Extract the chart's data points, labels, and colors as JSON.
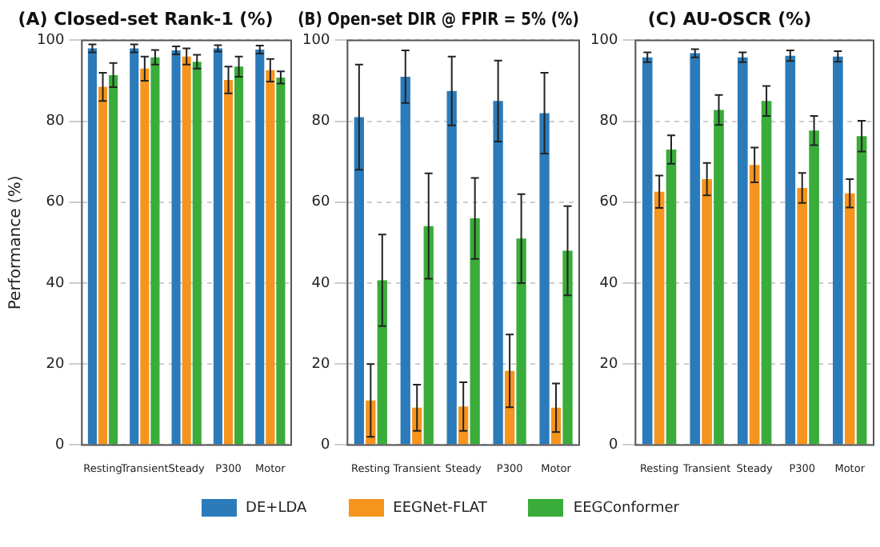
{
  "chart_data": [
    {
      "type": "bar",
      "title": "(A) Closed-set Rank-1 (%)",
      "ylabel": "Performance (%)",
      "categories": [
        "Resting",
        "Transient",
        "Steady",
        "P300",
        "Motor"
      ],
      "ylim": [
        0,
        100
      ],
      "yticks": [
        0,
        20,
        40,
        60,
        80,
        100
      ],
      "grid": "y",
      "legend": "bottom",
      "series": [
        {
          "name": "DE+LDA",
          "color": "#2b7bba",
          "values": [
            98,
            98,
            97.5,
            98,
            97.7
          ],
          "errors": [
            1,
            1,
            1,
            0.8,
            1
          ]
        },
        {
          "name": "EEGNet-FLAT",
          "color": "#f7941d",
          "values": [
            88.5,
            93,
            96,
            90.2,
            92.6
          ],
          "errors": [
            3.5,
            3,
            2,
            3.3,
            2.8
          ]
        },
        {
          "name": "EEGConformer",
          "color": "#3aac3a",
          "values": [
            91.4,
            95.8,
            94.7,
            93.5,
            90.8
          ],
          "errors": [
            3,
            1.8,
            1.7,
            2.5,
            1.5
          ]
        }
      ]
    },
    {
      "type": "bar",
      "title": "(B) Open-set DIR @ FPIR = 5% (%)",
      "categories": [
        "Resting",
        "Transient",
        "Steady",
        "P300",
        "Motor"
      ],
      "ylim": [
        0,
        100
      ],
      "yticks": [
        0,
        20,
        40,
        60,
        80,
        100
      ],
      "grid": "y",
      "series": [
        {
          "color": "#2b7bba",
          "values": [
            81,
            91,
            87.5,
            85,
            82
          ],
          "errors": [
            13,
            6.5,
            8.5,
            10,
            10
          ]
        },
        {
          "color": "#f7941d",
          "values": [
            11,
            9.2,
            9.5,
            18.3,
            9.2
          ],
          "errors": [
            9,
            5.7,
            6,
            9,
            6
          ]
        },
        {
          "color": "#3aac3a",
          "values": [
            40.7,
            54.1,
            56,
            51,
            48
          ],
          "errors": [
            11.3,
            13,
            10,
            11,
            11
          ]
        }
      ]
    },
    {
      "type": "bar",
      "title": "(C) AU-OSCR (%)",
      "categories": [
        "Resting",
        "Transient",
        "Steady",
        "P300",
        "Motor"
      ],
      "ylim": [
        0,
        100
      ],
      "yticks": [
        0,
        20,
        40,
        60,
        80,
        100
      ],
      "grid": "y",
      "series": [
        {
          "color": "#2b7bba",
          "values": [
            95.8,
            96.8,
            95.8,
            96.2,
            96
          ],
          "errors": [
            1.2,
            1,
            1.2,
            1.3,
            1.3
          ]
        },
        {
          "color": "#f7941d",
          "values": [
            62.6,
            65.7,
            69.2,
            63.5,
            62.2
          ],
          "errors": [
            4,
            4,
            4.3,
            3.7,
            3.5
          ]
        },
        {
          "color": "#3aac3a",
          "values": [
            73,
            82.8,
            85,
            77.7,
            76.3
          ],
          "errors": [
            3.5,
            3.7,
            3.7,
            3.6,
            3.8
          ]
        }
      ]
    }
  ]
}
